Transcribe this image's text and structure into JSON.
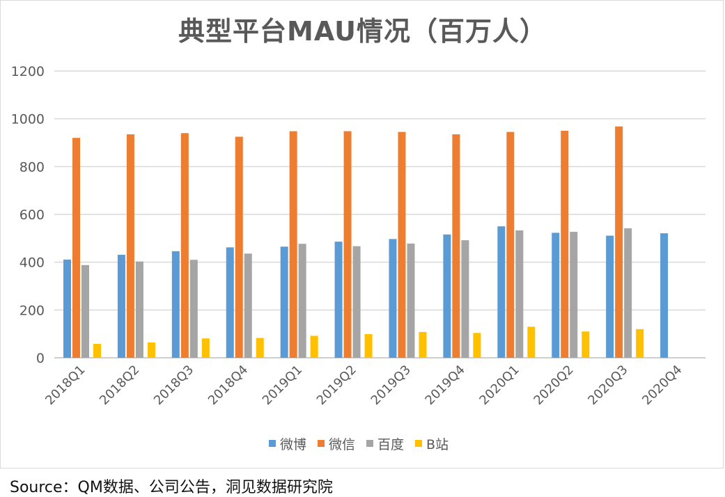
{
  "chart_data": {
    "type": "bar",
    "title": "典型平台MAU情况（百万人）",
    "xlabel": "",
    "ylabel": "",
    "ylim": [
      0,
      1200
    ],
    "yticks": [
      0,
      200,
      400,
      600,
      800,
      1000,
      1200
    ],
    "categories": [
      "2018Q1",
      "2018Q2",
      "2018Q3",
      "2018Q4",
      "2019Q1",
      "2019Q2",
      "2019Q3",
      "2019Q4",
      "2020Q1",
      "2020Q2",
      "2020Q3",
      "2020Q4"
    ],
    "series": [
      {
        "name": "微博",
        "color": "#5b9bd5",
        "values": [
          411,
          431,
          446,
          462,
          465,
          486,
          497,
          516,
          550,
          523,
          511,
          521
        ]
      },
      {
        "name": "微信",
        "color": "#ed7d31",
        "values": [
          920,
          935,
          940,
          925,
          948,
          948,
          945,
          935,
          945,
          950,
          968,
          null
        ]
      },
      {
        "name": "百度",
        "color": "#a5a5a5",
        "values": [
          388,
          403,
          410,
          436,
          477,
          467,
          478,
          492,
          533,
          527,
          542,
          null
        ]
      },
      {
        "name": "B站",
        "color": "#ffc000",
        "values": [
          58,
          64,
          81,
          83,
          92,
          99,
          108,
          104,
          130,
          110,
          120,
          null
        ]
      }
    ],
    "legend_position": "bottom",
    "grid": true
  },
  "source_text": "Source：QM数据、公司公告，洞见数据研究院"
}
